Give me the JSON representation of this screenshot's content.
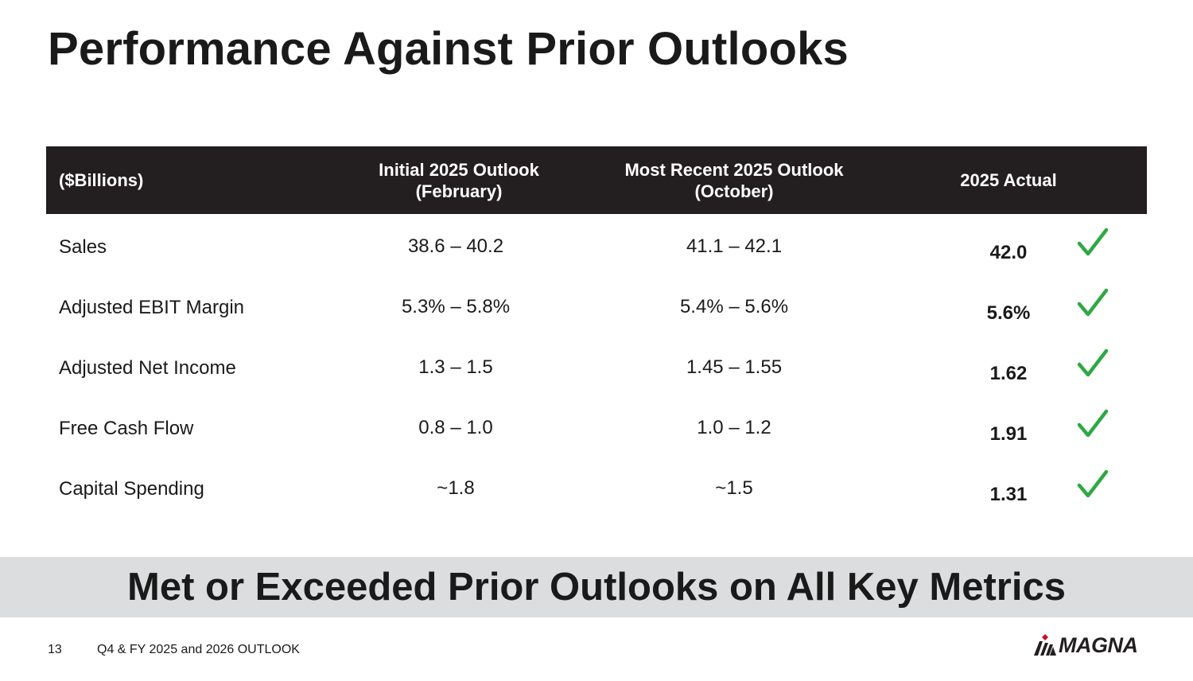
{
  "slide": {
    "title": "Performance Against Prior Outlooks",
    "banner": "Met or Exceeded Prior Outlooks on All Key Metrics"
  },
  "table": {
    "headers": {
      "metric": "($Billions)",
      "initial_line1": "Initial 2025 Outlook",
      "initial_line2": "(February)",
      "recent_line1": "Most Recent 2025 Outlook",
      "recent_line2": "(October)",
      "actual": "2025 Actual"
    },
    "rows": [
      {
        "metric": "Sales",
        "initial": "38.6 – 40.2",
        "recent": "41.1 – 42.1",
        "actual": "42.0"
      },
      {
        "metric": "Adjusted EBIT Margin",
        "initial": "5.3% – 5.8%",
        "recent": "5.4% – 5.6%",
        "actual": "5.6%"
      },
      {
        "metric": "Adjusted Net Income",
        "initial": "1.3 – 1.5",
        "recent": "1.45 – 1.55",
        "actual": "1.62"
      },
      {
        "metric": "Free Cash Flow",
        "initial": "0.8 – 1.0",
        "recent": "1.0 – 1.2",
        "actual": "1.91"
      },
      {
        "metric": "Capital Spending",
        "initial": "~1.8",
        "recent": "~1.5",
        "actual": "1.31"
      }
    ],
    "check_icon": "checkmark-icon",
    "check_color": "#2ea843"
  },
  "footer": {
    "page_number": "13",
    "text": "Q4 & FY 2025 and 2026 OUTLOOK",
    "logo_text": "MAGNA"
  }
}
